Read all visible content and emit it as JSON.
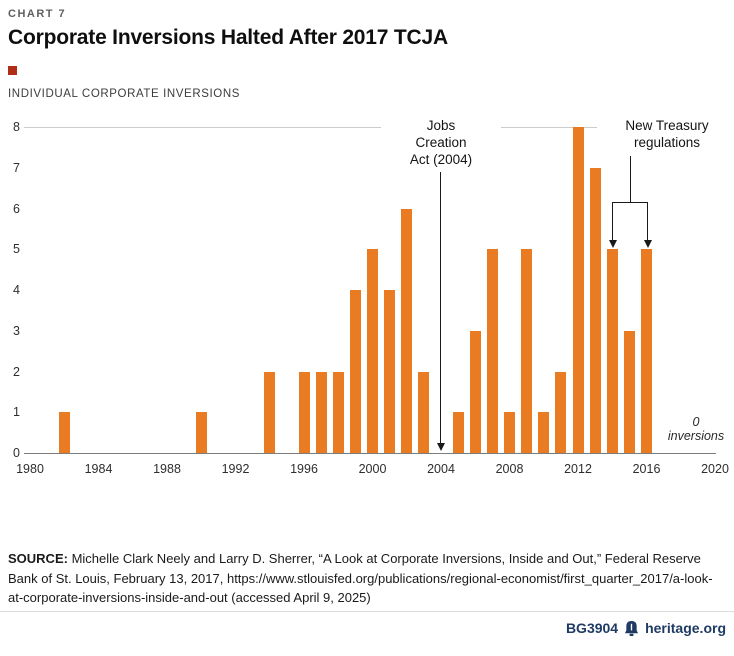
{
  "page": {
    "kicker": "CHART 7",
    "title": "Corporate Inversions Halted After 2017 TCJA",
    "subtitle": "INDIVIDUAL CORPORATE INVERSIONS"
  },
  "chart_data": {
    "type": "bar",
    "title": "Corporate Inversions Halted After 2017 TCJA",
    "ylabel": "INDIVIDUAL CORPORATE INVERSIONS",
    "xlabel": "",
    "x_range": [
      1980,
      2020
    ],
    "x_ticks": [
      1980,
      1984,
      1988,
      1992,
      1996,
      2000,
      2004,
      2008,
      2012,
      2016,
      2020
    ],
    "ylim": [
      0,
      8
    ],
    "y_ticks": [
      0,
      1,
      2,
      3,
      4,
      5,
      6,
      7,
      8
    ],
    "grid": "horizontal line at y=8 and baseline at y=0 only",
    "legend": "none",
    "points": [
      {
        "year": 1982,
        "value": 1
      },
      {
        "year": 1990,
        "value": 1
      },
      {
        "year": 1994,
        "value": 2
      },
      {
        "year": 1996,
        "value": 2
      },
      {
        "year": 1997,
        "value": 2
      },
      {
        "year": 1998,
        "value": 2
      },
      {
        "year": 1999,
        "value": 4
      },
      {
        "year": 2000,
        "value": 5
      },
      {
        "year": 2001,
        "value": 4
      },
      {
        "year": 2002,
        "value": 6
      },
      {
        "year": 2003,
        "value": 2
      },
      {
        "year": 2005,
        "value": 1
      },
      {
        "year": 2006,
        "value": 3
      },
      {
        "year": 2007,
        "value": 5
      },
      {
        "year": 2008,
        "value": 1
      },
      {
        "year": 2009,
        "value": 5
      },
      {
        "year": 2010,
        "value": 1
      },
      {
        "year": 2011,
        "value": 2
      },
      {
        "year": 2012,
        "value": 8
      },
      {
        "year": 2013,
        "value": 7
      },
      {
        "year": 2014,
        "value": 5
      },
      {
        "year": 2015,
        "value": 3
      },
      {
        "year": 2016,
        "value": 5
      }
    ],
    "annotations": [
      {
        "id": "jobs-creation-act",
        "lines": [
          "Jobs",
          "Creation",
          "Act (2004)"
        ],
        "arrow_target_year": 2004
      },
      {
        "id": "new-treasury-regulations",
        "lines": [
          "New Treasury",
          "regulations"
        ],
        "arrow_target_years": [
          2014,
          2016
        ]
      },
      {
        "id": "zero-inversions",
        "lines": [
          "0",
          "inversions"
        ],
        "style": "italic",
        "refers_to_years": "2017-2020"
      }
    ]
  },
  "source": {
    "label": "SOURCE:",
    "text": " Michelle Clark Neely and Larry D. Sherrer, “A Look at Corporate Inversions, Inside and Out,” Federal Reserve Bank of St. Louis, February 13, 2017, https://www.stlouisfed.org/publications/regional-economist/first_quarter_2017/a-look-at-corporate-inversions-inside-and-out (accessed April 9, 2025)"
  },
  "footer": {
    "doc_id": "BG3904",
    "site": "heritage.org"
  },
  "colors": {
    "bar": "#E97B23",
    "accent_red": "#B02E18",
    "footer_navy": "#1F3B63",
    "axis_text": "#2E2E2E"
  }
}
